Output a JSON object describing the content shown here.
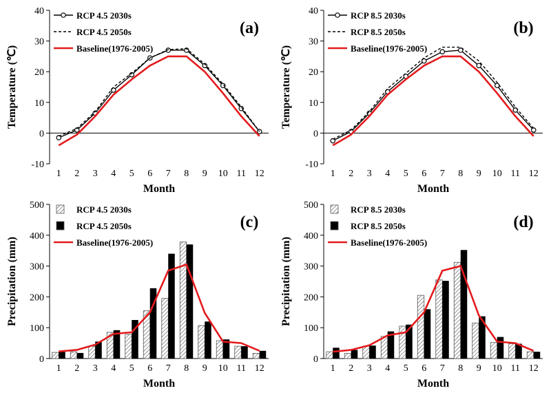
{
  "chart_data": [
    {
      "id": "a",
      "type": "line",
      "panel_label": "(a)",
      "title": "",
      "xlabel": "Month",
      "ylabel": "Temperature (℃)",
      "ylim": [
        -10,
        40
      ],
      "yticks": [
        -10,
        0,
        10,
        20,
        30,
        40
      ],
      "categories": [
        "1",
        "2",
        "3",
        "4",
        "5",
        "6",
        "7",
        "8",
        "9",
        "10",
        "11",
        "12"
      ],
      "legend_position": "top-left",
      "series": [
        {
          "name": "RCP 4.5 2030s",
          "style": "line-marker",
          "color": "#000000",
          "values": [
            -1.5,
            1.0,
            6.5,
            14.0,
            19.0,
            24.5,
            27.0,
            27.0,
            22.0,
            15.5,
            8.0,
            0.5
          ]
        },
        {
          "name": "RCP 4.5 2050s",
          "style": "dashed",
          "color": "#000000",
          "values": [
            -1.0,
            1.5,
            7.0,
            15.0,
            19.5,
            24.5,
            27.2,
            27.5,
            22.5,
            16.0,
            8.5,
            0.5
          ]
        },
        {
          "name": "Baseline(1976-2005)",
          "style": "thick",
          "color": "#e41a1c",
          "values": [
            -4.0,
            -0.5,
            5.5,
            12.5,
            17.5,
            22.0,
            25.0,
            25.0,
            20.0,
            13.0,
            5.5,
            -1.0
          ]
        }
      ]
    },
    {
      "id": "b",
      "type": "line",
      "panel_label": "(b)",
      "title": "",
      "xlabel": "Month",
      "ylabel": "Temperature (℃)",
      "ylim": [
        -10,
        40
      ],
      "yticks": [
        -10,
        0,
        10,
        20,
        30,
        40
      ],
      "categories": [
        "1",
        "2",
        "3",
        "4",
        "5",
        "6",
        "7",
        "8",
        "9",
        "10",
        "11",
        "12"
      ],
      "legend_position": "top-left",
      "series": [
        {
          "name": "RCP 8.5 2030s",
          "style": "line-marker",
          "color": "#000000",
          "values": [
            -2.5,
            0.5,
            6.5,
            13.5,
            18.5,
            23.5,
            26.5,
            27.0,
            22.0,
            15.5,
            7.5,
            1.0
          ]
        },
        {
          "name": "RCP 8.5 2050s",
          "style": "dashed",
          "color": "#000000",
          "values": [
            -2.0,
            1.0,
            7.0,
            14.5,
            19.5,
            24.5,
            28.0,
            28.0,
            23.5,
            16.5,
            8.5,
            1.5
          ]
        },
        {
          "name": "Baseline(1976-2005)",
          "style": "thick",
          "color": "#e41a1c",
          "values": [
            -4.0,
            -0.5,
            5.5,
            12.5,
            17.5,
            22.0,
            25.0,
            25.0,
            20.0,
            13.0,
            5.5,
            -1.0
          ]
        }
      ]
    },
    {
      "id": "c",
      "type": "bar",
      "panel_label": "(c)",
      "title": "",
      "xlabel": "Month",
      "ylabel": "Precipitation (mm)",
      "ylim": [
        0,
        500
      ],
      "yticks": [
        0,
        100,
        200,
        300,
        400,
        500
      ],
      "categories": [
        "1",
        "2",
        "3",
        "4",
        "5",
        "6",
        "7",
        "8",
        "9",
        "10",
        "11",
        "12"
      ],
      "legend_position": "top-left",
      "series": [
        {
          "name": "RCP 4.5 2030s",
          "style": "hatched-bar",
          "color": "#9e9e9e",
          "values": [
            20,
            22,
            40,
            85,
            78,
            155,
            195,
            378,
            107,
            58,
            40,
            17
          ]
        },
        {
          "name": "RCP 4.5 2050s",
          "style": "solid-bar",
          "color": "#000000",
          "values": [
            22,
            18,
            55,
            92,
            125,
            228,
            340,
            370,
            120,
            62,
            40,
            25
          ]
        },
        {
          "name": "Baseline(1976-2005)",
          "style": "thick-line",
          "color": "#e41a1c",
          "values": [
            23,
            28,
            45,
            80,
            85,
            150,
            285,
            305,
            148,
            55,
            50,
            25
          ]
        }
      ]
    },
    {
      "id": "d",
      "type": "bar",
      "panel_label": "(d)",
      "title": "",
      "xlabel": "Month",
      "ylabel": "Precipitation (mm)",
      "ylim": [
        0,
        500
      ],
      "yticks": [
        0,
        100,
        200,
        300,
        400,
        500
      ],
      "categories": [
        "1",
        "2",
        "3",
        "4",
        "5",
        "6",
        "7",
        "8",
        "9",
        "10",
        "11",
        "12"
      ],
      "legend_position": "top-left",
      "series": [
        {
          "name": "RCP 8.5 2030s",
          "style": "hatched-bar",
          "color": "#9e9e9e",
          "values": [
            22,
            17,
            40,
            72,
            105,
            205,
            255,
            312,
            115,
            52,
            48,
            22
          ]
        },
        {
          "name": "RCP 8.5 2050s",
          "style": "solid-bar",
          "color": "#000000",
          "values": [
            35,
            28,
            42,
            88,
            110,
            160,
            252,
            352,
            137,
            70,
            48,
            22
          ]
        },
        {
          "name": "Baseline(1976-2005)",
          "style": "thick-line",
          "color": "#e41a1c",
          "values": [
            22,
            28,
            43,
            75,
            85,
            150,
            285,
            300,
            140,
            55,
            50,
            25
          ]
        }
      ]
    }
  ]
}
